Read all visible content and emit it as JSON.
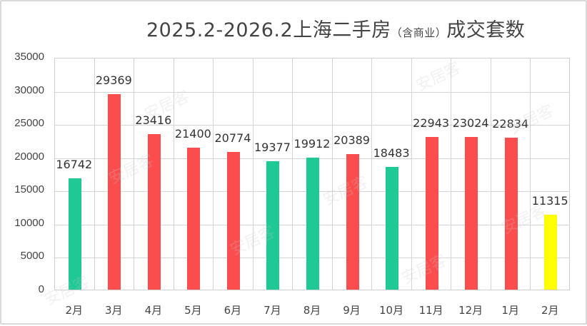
{
  "chart_data": {
    "type": "bar",
    "title": "2025.2-2026.2上海二手房（含商业）成交套数",
    "title_main_before": "2025.2-2026.2上海二手房",
    "title_sub": "（含商业）",
    "title_main_after": "成交套数",
    "xlabel": "",
    "ylabel": "",
    "ylim": [
      0,
      35000
    ],
    "yticks": [
      "35000",
      "30000",
      "25000",
      "20000",
      "15000",
      "10000",
      "5000",
      "0"
    ],
    "grid": true,
    "legend": null,
    "categories": [
      "2月",
      "3月",
      "4月",
      "5月",
      "6月",
      "7月",
      "8月",
      "9月",
      "10月",
      "11月",
      "12月",
      "1月",
      "2月"
    ],
    "values": [
      16742,
      29369,
      23416,
      21400,
      20774,
      19377,
      19912,
      20389,
      18483,
      22943,
      23024,
      22834,
      11315
    ],
    "value_labels": [
      "16742",
      "29369",
      "23416",
      "21400",
      "20774",
      "19377",
      "19912",
      "20389",
      "18483",
      "22943",
      "23024",
      "22834",
      "11315"
    ],
    "bar_colors": [
      "#1ec995",
      "#fb4d4d",
      "#fb4d4d",
      "#fb4d4d",
      "#fb4d4d",
      "#1ec995",
      "#1ec995",
      "#fb4d4d",
      "#1ec995",
      "#fb4d4d",
      "#fb4d4d",
      "#fb4d4d",
      "#ffff00"
    ]
  },
  "watermark": "安居客",
  "colors": {
    "up": "#fb4d4d",
    "down": "#1ec995",
    "partial": "#ffff00"
  }
}
